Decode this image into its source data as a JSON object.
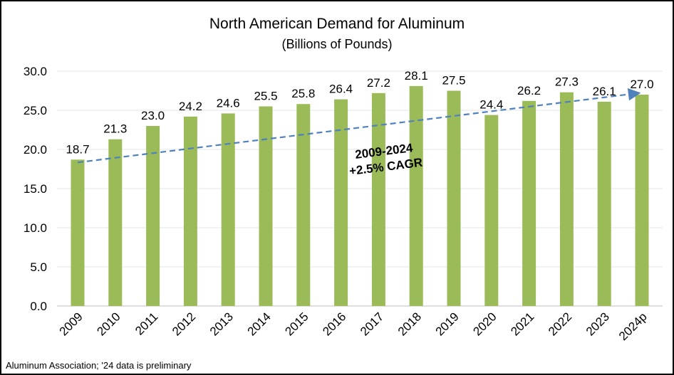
{
  "chart_data": {
    "type": "bar",
    "title": "North American Demand for Aluminum",
    "subtitle": "(Billions of Pounds)",
    "categories": [
      "2009",
      "2010",
      "2011",
      "2012",
      "2013",
      "2014",
      "2015",
      "2016",
      "2017",
      "2018",
      "2019",
      "2020",
      "2021",
      "2022",
      "2023",
      "2024p"
    ],
    "values": [
      18.7,
      21.3,
      23.0,
      24.2,
      24.6,
      25.5,
      25.8,
      26.4,
      27.2,
      28.1,
      27.5,
      24.4,
      26.2,
      27.3,
      26.1,
      27.0
    ],
    "data_labels": [
      "18.7",
      "21.3",
      "23.0",
      "24.2",
      "24.6",
      "25.5",
      "25.8",
      "26.4",
      "27.2",
      "28.1",
      "27.5",
      "24.4",
      "26.2",
      "27.3",
      "26.1",
      "27.0"
    ],
    "ylim": [
      0,
      30
    ],
    "yticks": [
      "0.0",
      "5.0",
      "10.0",
      "15.0",
      "20.0",
      "25.0",
      "30.0"
    ],
    "grid": true,
    "bar_color": "#9BBB59",
    "trendline": {
      "from": {
        "x": "2009",
        "y": 18.7
      },
      "to": {
        "x": "2024p",
        "y": 27.0
      },
      "style": "dashed-arrow",
      "color": "#4F81BD"
    },
    "annotation": [
      "2009-2024",
      "+2.5% CAGR"
    ],
    "source": "Aluminum Association; '24 data is preliminary"
  }
}
